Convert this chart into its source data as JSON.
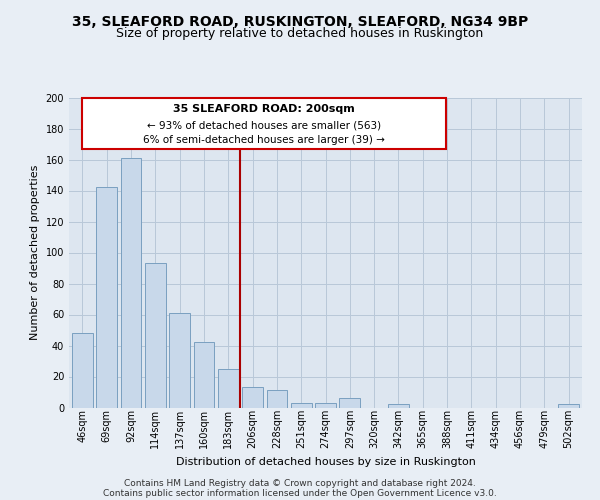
{
  "title": "35, SLEAFORD ROAD, RUSKINGTON, SLEAFORD, NG34 9BP",
  "subtitle": "Size of property relative to detached houses in Ruskington",
  "xlabel": "Distribution of detached houses by size in Ruskington",
  "ylabel": "Number of detached properties",
  "bar_labels": [
    "46sqm",
    "69sqm",
    "92sqm",
    "114sqm",
    "137sqm",
    "160sqm",
    "183sqm",
    "206sqm",
    "228sqm",
    "251sqm",
    "274sqm",
    "297sqm",
    "320sqm",
    "342sqm",
    "365sqm",
    "388sqm",
    "411sqm",
    "434sqm",
    "456sqm",
    "479sqm",
    "502sqm"
  ],
  "bar_heights": [
    48,
    142,
    161,
    93,
    61,
    42,
    25,
    13,
    11,
    3,
    3,
    6,
    0,
    2,
    0,
    0,
    0,
    0,
    0,
    0,
    2
  ],
  "bar_color": "#c8d8ea",
  "bar_edge_color": "#7aa0c0",
  "vline_color": "#aa0000",
  "annotation_title": "35 SLEAFORD ROAD: 200sqm",
  "annotation_line1": "← 93% of detached houses are smaller (563)",
  "annotation_line2": "6% of semi-detached houses are larger (39) →",
  "annotation_box_facecolor": "#ffffff",
  "annotation_box_edgecolor": "#cc0000",
  "ylim": [
    0,
    200
  ],
  "yticks": [
    0,
    20,
    40,
    60,
    80,
    100,
    120,
    140,
    160,
    180,
    200
  ],
  "footer_line1": "Contains HM Land Registry data © Crown copyright and database right 2024.",
  "footer_line2": "Contains public sector information licensed under the Open Government Licence v3.0.",
  "fig_bg_color": "#e8eef5",
  "plot_bg_color": "#dde6f0",
  "grid_color": "#b8c8d8",
  "title_fontsize": 10,
  "subtitle_fontsize": 9,
  "tick_fontsize": 7,
  "ylabel_fontsize": 8,
  "xlabel_fontsize": 8,
  "annotation_title_fontsize": 8,
  "annotation_text_fontsize": 7.5,
  "footer_fontsize": 6.5
}
